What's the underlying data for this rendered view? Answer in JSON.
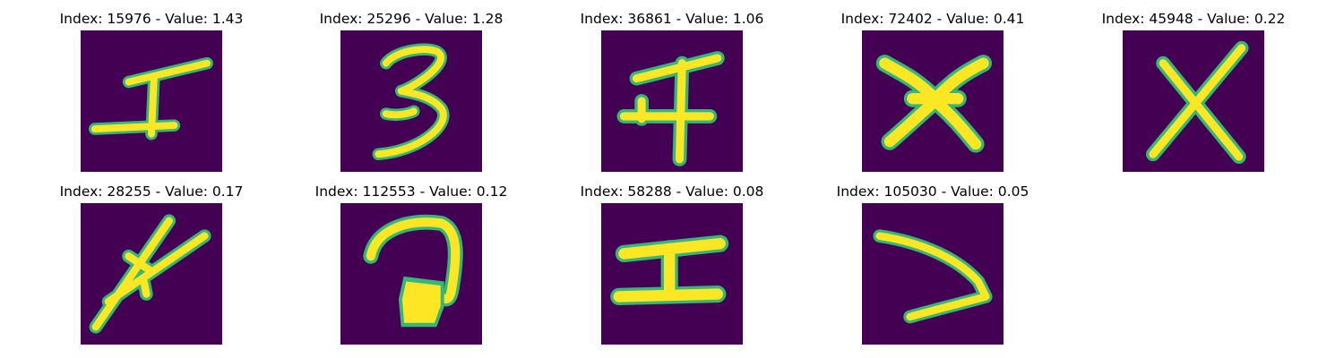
{
  "colors": {
    "background": "#440154",
    "stroke_core": "#fde725",
    "stroke_edge": "#35b779"
  },
  "panels": [
    {
      "index_label": "Index: 15976 - Value: 1.43",
      "glyph": "glyph-i-tilted"
    },
    {
      "index_label": "Index: 25296 - Value: 1.28",
      "glyph": "glyph-three"
    },
    {
      "index_label": "Index: 36861 - Value: 1.06",
      "glyph": "glyph-cross-bar"
    },
    {
      "index_label": "Index: 72402 - Value: 0.41",
      "glyph": "glyph-x-bowtie"
    },
    {
      "index_label": "Index: 45948 - Value: 0.22",
      "glyph": "glyph-x"
    },
    {
      "index_label": "Index: 28255 - Value: 0.17",
      "glyph": "glyph-slash-cross"
    },
    {
      "index_label": "Index: 112553 - Value: 0.12",
      "glyph": "glyph-hook"
    },
    {
      "index_label": "Index: 58288 - Value: 0.08",
      "glyph": "glyph-i-bar"
    },
    {
      "index_label": "Index: 105030 - Value: 0.05",
      "glyph": "glyph-angle"
    }
  ]
}
